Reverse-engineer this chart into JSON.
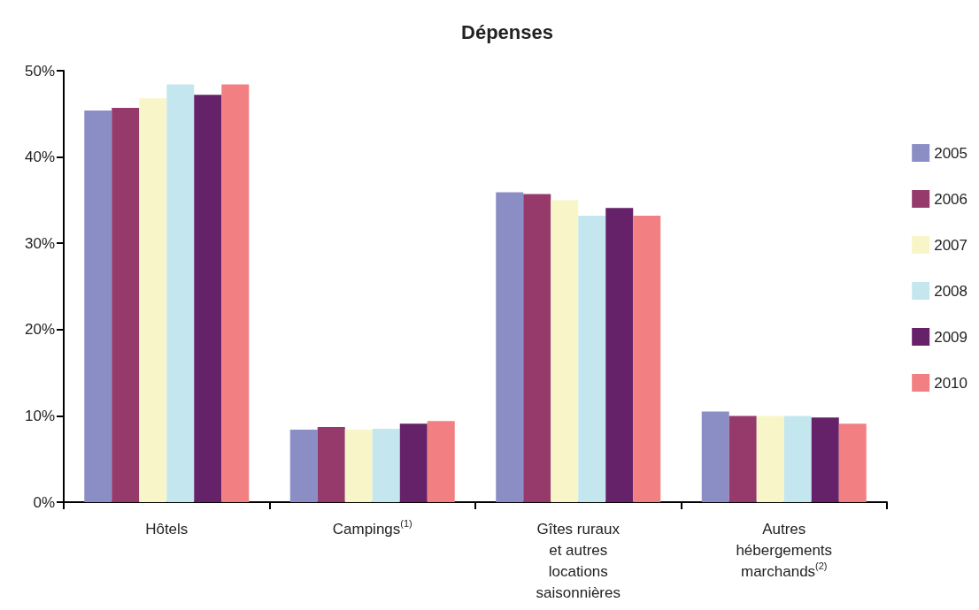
{
  "chart_data": {
    "type": "bar",
    "title": "Dépenses",
    "categories": [
      "Hôtels",
      "Campings$^{(1)}$",
      "Gîtes ruraux\net autres\nlocations\nsaisonnières",
      "Autres\nhébergements\nmarchands$^{(2)}$"
    ],
    "series": [
      {
        "name": "2005",
        "color": "#8b8ec4",
        "values": [
          45.4,
          8.4,
          35.9,
          10.5
        ]
      },
      {
        "name": "2006",
        "color": "#963a6c",
        "values": [
          45.7,
          8.7,
          35.7,
          10.0
        ]
      },
      {
        "name": "2007",
        "color": "#f8f6c8",
        "values": [
          46.8,
          8.4,
          35.0,
          10.0
        ]
      },
      {
        "name": "2008",
        "color": "#c4e7ef",
        "values": [
          48.4,
          8.5,
          33.2,
          10.0
        ]
      },
      {
        "name": "2009",
        "color": "#652268",
        "values": [
          47.2,
          9.1,
          34.1,
          9.8
        ]
      },
      {
        "name": "2010",
        "color": "#f28082",
        "values": [
          48.4,
          9.4,
          33.2,
          9.1
        ]
      }
    ],
    "ylim": [
      0,
      50
    ],
    "yticks": [
      {
        "value": 0,
        "label": "0%"
      },
      {
        "value": 10,
        "label": "10%"
      },
      {
        "value": 20,
        "label": "20%"
      },
      {
        "value": 30,
        "label": "30%"
      },
      {
        "value": 40,
        "label": "40%"
      },
      {
        "value": 50,
        "label": "50%"
      }
    ],
    "grid": false,
    "legend": "right"
  }
}
